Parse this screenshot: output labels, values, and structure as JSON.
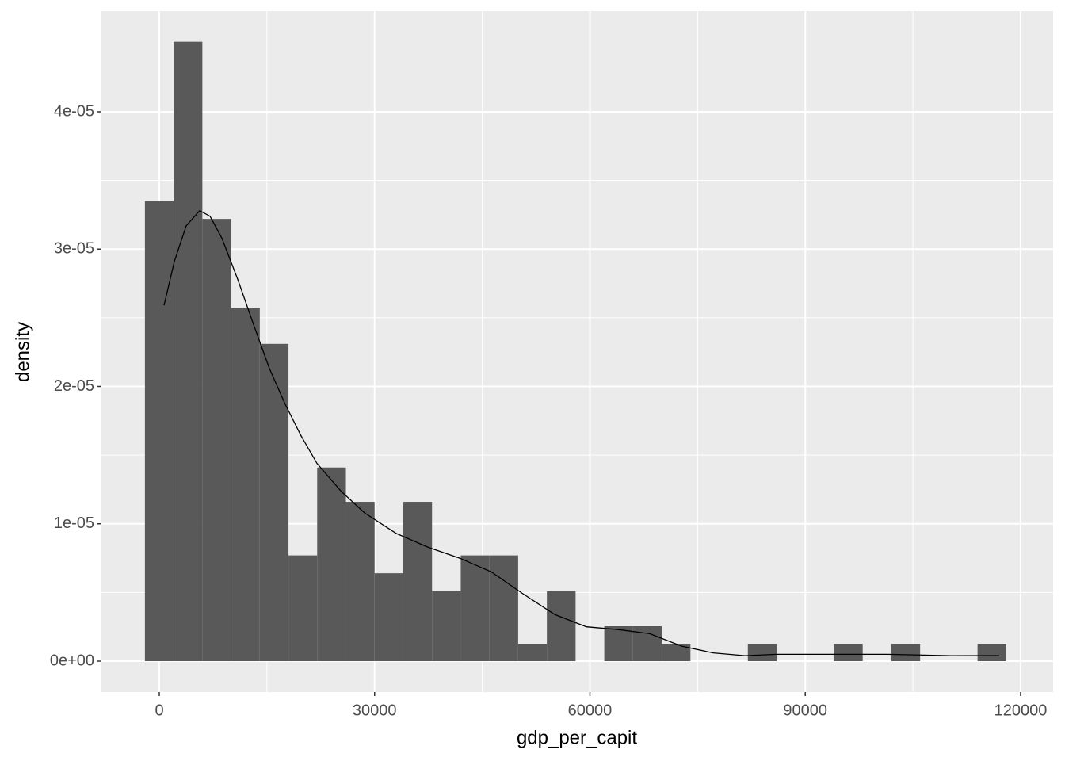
{
  "chart_data": {
    "type": "histogram",
    "x_label": "gdp_per_capit",
    "y_label": "density",
    "bins": [
      -2000,
      2000,
      6000,
      10000,
      14000,
      18000,
      22000,
      26000,
      30000,
      34000,
      38000,
      42000,
      46000,
      50000,
      54000,
      58000,
      62000,
      66000,
      70000,
      74000,
      78000,
      82000,
      86000,
      90000,
      94000,
      98000,
      102000,
      106000,
      110000,
      114000,
      118000
    ],
    "values": [
      3.35e-05,
      4.51e-05,
      3.22e-05,
      2.57e-05,
      2.31e-05,
      7.7e-06,
      1.41e-05,
      1.16e-05,
      6.4e-06,
      1.16e-05,
      5.1e-06,
      7.7e-06,
      7.7e-06,
      1.27e-06,
      5.1e-06,
      0,
      2.54e-06,
      2.54e-06,
      1.27e-06,
      0,
      0,
      1.27e-06,
      0,
      0,
      1.27e-06,
      0,
      1.27e-06,
      0,
      0,
      1.27e-06
    ],
    "color": "#595959",
    "density_line": {
      "color": "#000000",
      "x": [
        660,
        2100,
        3750,
        5630,
        7070,
        8720,
        10930,
        13140,
        15350,
        17550,
        19760,
        21970,
        25280,
        28590,
        33010,
        37430,
        41850,
        46260,
        50680,
        55090,
        59510,
        63920,
        68340,
        72750,
        77170,
        81590,
        86000,
        92620,
        97040,
        101460,
        110290,
        117020
      ],
      "y": [
        2.59e-05,
        2.91e-05,
        3.17e-05,
        3.28e-05,
        3.24e-05,
        3.08e-05,
        2.78e-05,
        2.45e-05,
        2.13e-05,
        1.87e-05,
        1.64e-05,
        1.44e-05,
        1.24e-05,
        1.08e-05,
        9.3e-06,
        8.3e-06,
        7.5e-06,
        6.5e-06,
        4.9e-06,
        3.4e-06,
        2.5e-06,
        2.3e-06,
        2e-06,
        1.1e-06,
        6e-07,
        4e-07,
        5e-07,
        5e-07,
        5e-07,
        5e-07,
        4e-07,
        4e-07
      ]
    },
    "xlim": [
      -8060,
      124530
    ],
    "ylim": [
      -2.25e-06,
      4.733e-05
    ],
    "xticks": [
      0,
      30000,
      60000,
      90000,
      120000
    ],
    "yticks": [
      {
        "value": 0,
        "label": "0e+00"
      },
      {
        "value": 1e-05,
        "label": "1e-05"
      },
      {
        "value": 2e-05,
        "label": "2e-05"
      },
      {
        "value": 3e-05,
        "label": "3e-05"
      },
      {
        "value": 4e-05,
        "label": "4e-05"
      }
    ],
    "grid": true
  }
}
